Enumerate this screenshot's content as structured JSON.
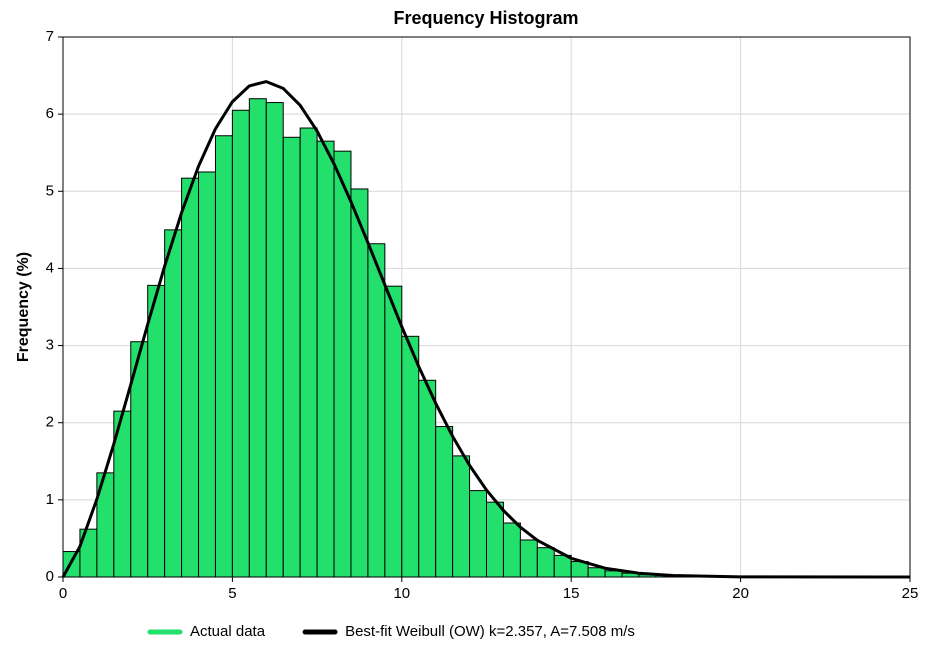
{
  "chart_data": {
    "type": "histogram",
    "title": "Frequency Histogram",
    "ylabel": "Frequency (%)",
    "bins": [
      0,
      0.5,
      1,
      1.5,
      2,
      2.5,
      3,
      3.5,
      4,
      4.5,
      5,
      5.5,
      6,
      6.5,
      7,
      7.5,
      8,
      8.5,
      9,
      9.5,
      10,
      10.5,
      11,
      11.5,
      12,
      12.5,
      13,
      13.5,
      14,
      14.5,
      15,
      15.5,
      16,
      16.5,
      17,
      17.5,
      18,
      18.5,
      19,
      19.5,
      20,
      20.5,
      21,
      21.5,
      22,
      22.5,
      23,
      23.5,
      24,
      24.5,
      25
    ],
    "series": [
      {
        "name": "Actual data",
        "color": "#22e06b",
        "values": [
          0.33,
          0.62,
          1.35,
          2.15,
          3.05,
          3.78,
          4.5,
          5.17,
          5.25,
          5.72,
          6.05,
          6.2,
          6.15,
          5.7,
          5.82,
          5.65,
          5.52,
          5.03,
          4.32,
          3.77,
          3.12,
          2.55,
          1.95,
          1.57,
          1.12,
          0.97,
          0.7,
          0.48,
          0.38,
          0.28,
          0.2,
          0.12,
          0.08,
          0.05,
          0.03,
          0.02,
          0.01,
          0.01,
          0,
          0,
          0,
          0,
          0,
          0,
          0,
          0,
          0,
          0,
          0,
          0
        ]
      },
      {
        "name": "Best-fit Weibull (OW) k=2.357, A=7.508 m/s",
        "type": "line",
        "color": "#000000",
        "x": [
          0,
          0.5,
          1,
          1.5,
          2,
          2.5,
          3,
          3.5,
          4,
          4.5,
          5,
          5.5,
          6,
          6.5,
          7,
          7.5,
          8,
          8.5,
          9,
          9.5,
          10,
          10.5,
          11,
          11.5,
          12,
          12.5,
          13,
          13.5,
          14,
          15,
          16,
          17,
          18,
          20,
          25
        ],
        "values": [
          0,
          0.397,
          1.009,
          1.725,
          2.494,
          3.275,
          4.029,
          4.723,
          5.325,
          5.81,
          6.161,
          6.366,
          6.422,
          6.334,
          6.115,
          5.781,
          5.355,
          4.865,
          4.334,
          3.787,
          3.245,
          2.729,
          2.252,
          1.823,
          1.447,
          1.127,
          0.862,
          0.646,
          0.475,
          0.243,
          0.114,
          0.049,
          0.02,
          0.002,
          0
        ]
      }
    ],
    "xlim": [
      0,
      25
    ],
    "ylim": [
      0,
      7
    ],
    "xticks": [
      0,
      5,
      10,
      15,
      20,
      25
    ],
    "yticks": [
      0,
      1,
      2,
      3,
      4,
      5,
      6,
      7
    ],
    "grid": true,
    "legend": "bottom"
  }
}
